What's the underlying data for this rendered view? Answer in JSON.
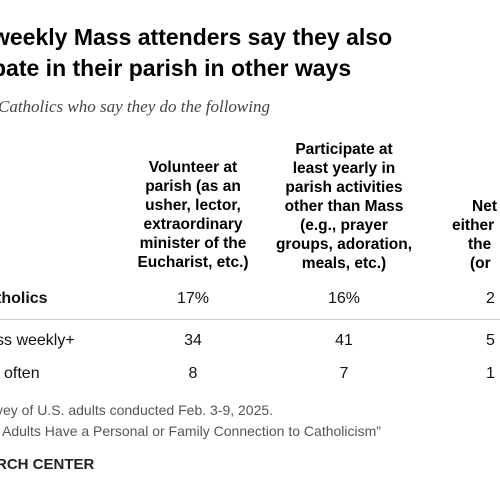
{
  "chart_data": {
    "type": "table",
    "title_lines": [
      "weekly Mass attenders say they also",
      "pate in their parish in other ways"
    ],
    "subtitle": "Catholics who say they do the following",
    "columns": [
      [
        "Volunteer at",
        "parish (as an",
        "usher, lector,",
        "extraordinary",
        "minister of the",
        "Eucharist, etc.)"
      ],
      [
        "Participate at",
        "least yearly in",
        "parish activities",
        "other than Mass",
        "(e.g., prayer",
        "groups, adoration,",
        "meals, etc.)"
      ],
      [
        "Net",
        "either",
        "the",
        "(or"
      ]
    ],
    "rows": [
      {
        "label": "tholics",
        "bold": true,
        "values": [
          "17%",
          "16%",
          "2"
        ]
      },
      {
        "label": "ss weekly+",
        "bold": false,
        "values": [
          "34",
          "41",
          "5"
        ]
      },
      {
        "label": "often",
        "bold": false,
        "values": [
          "8",
          "7",
          "1"
        ]
      }
    ],
    "notes": [
      "vey of U.S. adults conducted Feb. 3-9, 2025.",
      "Adults Have a Personal or Family Connection to Catholicism”"
    ],
    "source": "RCH CENTER"
  }
}
